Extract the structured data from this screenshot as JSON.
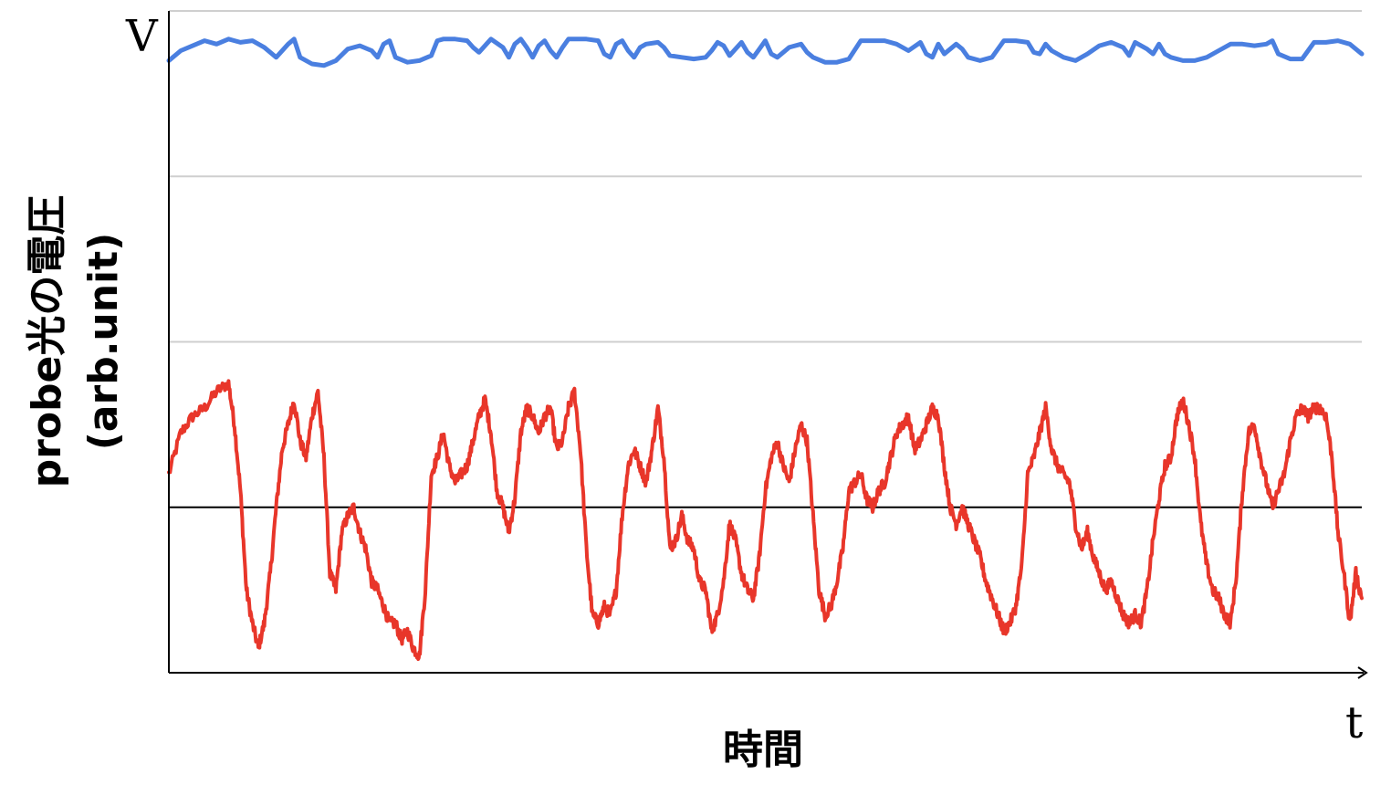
{
  "chart_data": {
    "type": "line",
    "ylabel": "probe光の電圧",
    "ylabel_unit": "(arb.unit)",
    "xlabel": "時間",
    "y_axis_symbol": "V",
    "x_axis_symbol": "t",
    "ylim": [
      0,
      4
    ],
    "xlim": [
      0,
      100
    ],
    "grid": true,
    "gridlines_y": [
      2,
      3,
      4
    ],
    "reference_line_y": 1,
    "series": [
      {
        "color": "#4a7fe0",
        "points": [
          [
            0,
            3.7
          ],
          [
            1,
            3.76
          ],
          [
            2,
            3.79
          ],
          [
            3,
            3.82
          ],
          [
            4,
            3.8
          ],
          [
            5,
            3.83
          ],
          [
            6,
            3.81
          ],
          [
            7,
            3.82
          ],
          [
            8,
            3.78
          ],
          [
            9,
            3.72
          ],
          [
            10,
            3.8
          ],
          [
            10.5,
            3.83
          ],
          [
            11,
            3.72
          ],
          [
            12,
            3.68
          ],
          [
            13,
            3.67
          ],
          [
            14,
            3.7
          ],
          [
            15,
            3.77
          ],
          [
            16,
            3.79
          ],
          [
            17,
            3.76
          ],
          [
            17.5,
            3.72
          ],
          [
            18,
            3.8
          ],
          [
            18.5,
            3.82
          ],
          [
            19,
            3.72
          ],
          [
            20,
            3.69
          ],
          [
            21,
            3.7
          ],
          [
            22,
            3.73
          ],
          [
            22.5,
            3.82
          ],
          [
            23,
            3.83
          ],
          [
            24,
            3.83
          ],
          [
            25,
            3.82
          ],
          [
            25.5,
            3.78
          ],
          [
            26,
            3.75
          ],
          [
            27,
            3.83
          ],
          [
            28,
            3.78
          ],
          [
            28.5,
            3.72
          ],
          [
            29,
            3.8
          ],
          [
            29.5,
            3.83
          ],
          [
            30,
            3.78
          ],
          [
            30.5,
            3.72
          ],
          [
            31,
            3.79
          ],
          [
            31.5,
            3.82
          ],
          [
            32,
            3.76
          ],
          [
            32.5,
            3.72
          ],
          [
            33,
            3.78
          ],
          [
            33.5,
            3.83
          ],
          [
            34,
            3.83
          ],
          [
            35,
            3.83
          ],
          [
            36,
            3.82
          ],
          [
            36.5,
            3.74
          ],
          [
            37,
            3.72
          ],
          [
            37.5,
            3.8
          ],
          [
            38,
            3.82
          ],
          [
            38.5,
            3.76
          ],
          [
            39,
            3.72
          ],
          [
            39.5,
            3.78
          ],
          [
            40,
            3.8
          ],
          [
            41,
            3.81
          ],
          [
            41.5,
            3.78
          ],
          [
            42,
            3.73
          ],
          [
            43,
            3.72
          ],
          [
            44,
            3.71
          ],
          [
            45,
            3.72
          ],
          [
            45.5,
            3.76
          ],
          [
            46,
            3.81
          ],
          [
            46.5,
            3.79
          ],
          [
            47,
            3.73
          ],
          [
            47.5,
            3.77
          ],
          [
            48,
            3.81
          ],
          [
            48.5,
            3.75
          ],
          [
            49,
            3.72
          ],
          [
            49.5,
            3.77
          ],
          [
            50,
            3.82
          ],
          [
            50.5,
            3.74
          ],
          [
            51,
            3.72
          ],
          [
            52,
            3.78
          ],
          [
            53,
            3.8
          ],
          [
            53.5,
            3.75
          ],
          [
            54,
            3.72
          ],
          [
            55,
            3.69
          ],
          [
            56,
            3.69
          ],
          [
            57,
            3.71
          ],
          [
            58,
            3.82
          ],
          [
            59,
            3.82
          ],
          [
            60,
            3.82
          ],
          [
            61,
            3.8
          ],
          [
            62,
            3.76
          ],
          [
            63,
            3.81
          ],
          [
            63.5,
            3.74
          ],
          [
            64,
            3.72
          ],
          [
            64.5,
            3.8
          ],
          [
            65,
            3.74
          ],
          [
            66,
            3.8
          ],
          [
            66.5,
            3.77
          ],
          [
            67,
            3.72
          ],
          [
            68,
            3.7
          ],
          [
            69,
            3.72
          ],
          [
            70,
            3.82
          ],
          [
            71,
            3.82
          ],
          [
            72,
            3.81
          ],
          [
            72.5,
            3.75
          ],
          [
            73,
            3.74
          ],
          [
            73.5,
            3.8
          ],
          [
            74,
            3.76
          ],
          [
            75,
            3.72
          ],
          [
            76,
            3.7
          ],
          [
            77,
            3.74
          ],
          [
            78,
            3.79
          ],
          [
            79,
            3.81
          ],
          [
            80,
            3.78
          ],
          [
            80.5,
            3.73
          ],
          [
            81,
            3.81
          ],
          [
            82,
            3.77
          ],
          [
            82.5,
            3.74
          ],
          [
            83,
            3.8
          ],
          [
            83.5,
            3.74
          ],
          [
            84,
            3.72
          ],
          [
            85,
            3.7
          ],
          [
            86,
            3.7
          ],
          [
            87,
            3.72
          ],
          [
            88,
            3.76
          ],
          [
            89,
            3.8
          ],
          [
            90,
            3.8
          ],
          [
            91,
            3.79
          ],
          [
            92,
            3.8
          ],
          [
            92.5,
            3.82
          ],
          [
            93,
            3.74
          ],
          [
            94,
            3.71
          ],
          [
            95,
            3.71
          ],
          [
            95.5,
            3.76
          ],
          [
            96,
            3.81
          ],
          [
            97,
            3.81
          ],
          [
            98,
            3.82
          ],
          [
            99,
            3.8
          ],
          [
            100,
            3.74
          ]
        ]
      },
      {
        "color": "#e8362a",
        "noise_amplitude": 0.035,
        "points": [
          [
            0,
            1.2
          ],
          [
            1,
            1.45
          ],
          [
            2,
            1.55
          ],
          [
            3,
            1.6
          ],
          [
            4,
            1.7
          ],
          [
            5,
            1.75
          ],
          [
            5.5,
            1.5
          ],
          [
            6,
            1.1
          ],
          [
            6.5,
            0.5
          ],
          [
            7,
            0.3
          ],
          [
            7.5,
            0.15
          ],
          [
            8,
            0.3
          ],
          [
            8.5,
            0.6
          ],
          [
            9,
            1.0
          ],
          [
            9.5,
            1.35
          ],
          [
            10,
            1.5
          ],
          [
            10.5,
            1.65
          ],
          [
            11,
            1.4
          ],
          [
            11.5,
            1.3
          ],
          [
            12,
            1.55
          ],
          [
            12.5,
            1.7
          ],
          [
            13,
            1.3
          ],
          [
            13.5,
            0.6
          ],
          [
            14,
            0.5
          ],
          [
            14.5,
            0.85
          ],
          [
            15,
            0.95
          ],
          [
            15.5,
            1.0
          ],
          [
            16,
            0.85
          ],
          [
            16.5,
            0.75
          ],
          [
            17,
            0.55
          ],
          [
            17.5,
            0.5
          ],
          [
            18,
            0.4
          ],
          [
            18.5,
            0.3
          ],
          [
            19,
            0.3
          ],
          [
            19.5,
            0.2
          ],
          [
            20,
            0.25
          ],
          [
            20.5,
            0.15
          ],
          [
            21,
            0.1
          ],
          [
            21.5,
            0.5
          ],
          [
            22,
            1.2
          ],
          [
            22.5,
            1.3
          ],
          [
            23,
            1.45
          ],
          [
            23.5,
            1.25
          ],
          [
            24,
            1.15
          ],
          [
            24.5,
            1.2
          ],
          [
            25,
            1.25
          ],
          [
            25.5,
            1.4
          ],
          [
            26,
            1.55
          ],
          [
            26.5,
            1.65
          ],
          [
            27,
            1.45
          ],
          [
            27.5,
            1.1
          ],
          [
            28,
            1.0
          ],
          [
            28.5,
            0.85
          ],
          [
            29,
            1.05
          ],
          [
            29.5,
            1.45
          ],
          [
            30,
            1.6
          ],
          [
            30.5,
            1.55
          ],
          [
            31,
            1.45
          ],
          [
            31.5,
            1.55
          ],
          [
            32,
            1.6
          ],
          [
            32.5,
            1.35
          ],
          [
            33,
            1.4
          ],
          [
            33.5,
            1.6
          ],
          [
            34,
            1.7
          ],
          [
            34.5,
            1.35
          ],
          [
            35,
            0.75
          ],
          [
            35.5,
            0.35
          ],
          [
            36,
            0.3
          ],
          [
            36.5,
            0.4
          ],
          [
            37,
            0.35
          ],
          [
            37.5,
            0.5
          ],
          [
            38,
            0.95
          ],
          [
            38.5,
            1.25
          ],
          [
            39,
            1.35
          ],
          [
            39.5,
            1.25
          ],
          [
            40,
            1.15
          ],
          [
            40.5,
            1.35
          ],
          [
            41,
            1.6
          ],
          [
            41.5,
            1.3
          ],
          [
            42,
            0.75
          ],
          [
            42.5,
            0.8
          ],
          [
            43,
            0.95
          ],
          [
            43.5,
            0.8
          ],
          [
            44,
            0.75
          ],
          [
            44.5,
            0.55
          ],
          [
            45,
            0.5
          ],
          [
            45.5,
            0.25
          ],
          [
            46,
            0.35
          ],
          [
            46.5,
            0.55
          ],
          [
            47,
            0.9
          ],
          [
            47.5,
            0.8
          ],
          [
            48,
            0.6
          ],
          [
            48.5,
            0.5
          ],
          [
            49,
            0.45
          ],
          [
            49.5,
            0.7
          ],
          [
            50,
            1.1
          ],
          [
            50.5,
            1.3
          ],
          [
            51,
            1.4
          ],
          [
            51.5,
            1.25
          ],
          [
            52,
            1.15
          ],
          [
            52.5,
            1.35
          ],
          [
            53,
            1.5
          ],
          [
            53.5,
            1.4
          ],
          [
            54,
            0.95
          ],
          [
            54.5,
            0.5
          ],
          [
            55,
            0.35
          ],
          [
            55.5,
            0.4
          ],
          [
            56,
            0.55
          ],
          [
            56.5,
            0.75
          ],
          [
            57,
            1.1
          ],
          [
            57.5,
            1.15
          ],
          [
            58,
            1.2
          ],
          [
            58.5,
            1.05
          ],
          [
            59,
            1.0
          ],
          [
            59.5,
            1.1
          ],
          [
            60,
            1.15
          ],
          [
            60.5,
            1.3
          ],
          [
            61,
            1.45
          ],
          [
            61.5,
            1.5
          ],
          [
            62,
            1.55
          ],
          [
            62.5,
            1.35
          ],
          [
            63,
            1.4
          ],
          [
            63.5,
            1.5
          ],
          [
            64,
            1.6
          ],
          [
            64.5,
            1.55
          ],
          [
            65,
            1.25
          ],
          [
            65.5,
            1.0
          ],
          [
            66,
            0.9
          ],
          [
            66.5,
            1.0
          ],
          [
            67,
            0.9
          ],
          [
            67.5,
            0.8
          ],
          [
            68,
            0.7
          ],
          [
            68.5,
            0.55
          ],
          [
            69,
            0.45
          ],
          [
            69.5,
            0.35
          ],
          [
            70,
            0.25
          ],
          [
            70.5,
            0.3
          ],
          [
            71,
            0.4
          ],
          [
            71.5,
            0.65
          ],
          [
            72,
            1.2
          ],
          [
            72.5,
            1.3
          ],
          [
            73,
            1.45
          ],
          [
            73.5,
            1.6
          ],
          [
            74,
            1.35
          ],
          [
            74.5,
            1.25
          ],
          [
            75,
            1.2
          ],
          [
            75.5,
            1.15
          ],
          [
            76,
            0.9
          ],
          [
            76.5,
            0.75
          ],
          [
            77,
            0.85
          ],
          [
            77.5,
            0.7
          ],
          [
            78,
            0.6
          ],
          [
            78.5,
            0.5
          ],
          [
            79,
            0.55
          ],
          [
            79.5,
            0.45
          ],
          [
            80,
            0.35
          ],
          [
            80.5,
            0.3
          ],
          [
            81,
            0.35
          ],
          [
            81.5,
            0.3
          ],
          [
            82,
            0.5
          ],
          [
            82.5,
            0.8
          ],
          [
            83,
            1.05
          ],
          [
            83.5,
            1.25
          ],
          [
            84,
            1.3
          ],
          [
            84.5,
            1.55
          ],
          [
            85,
            1.65
          ],
          [
            85.5,
            1.5
          ],
          [
            86,
            1.3
          ],
          [
            86.5,
            0.9
          ],
          [
            87,
            0.65
          ],
          [
            87.5,
            0.5
          ],
          [
            88,
            0.45
          ],
          [
            88.5,
            0.35
          ],
          [
            89,
            0.3
          ],
          [
            89.5,
            0.6
          ],
          [
            90,
            1.1
          ],
          [
            90.5,
            1.45
          ],
          [
            91,
            1.5
          ],
          [
            91.5,
            1.3
          ],
          [
            92,
            1.15
          ],
          [
            92.5,
            1.0
          ],
          [
            93,
            1.1
          ],
          [
            93.5,
            1.2
          ],
          [
            94,
            1.4
          ],
          [
            94.5,
            1.55
          ],
          [
            95,
            1.6
          ],
          [
            95.5,
            1.55
          ],
          [
            96,
            1.6
          ],
          [
            96.5,
            1.6
          ],
          [
            97,
            1.55
          ],
          [
            97.5,
            1.3
          ],
          [
            98,
            0.85
          ],
          [
            98.5,
            0.6
          ],
          [
            99,
            0.3
          ],
          [
            99.5,
            0.6
          ],
          [
            100,
            0.45
          ]
        ]
      }
    ]
  }
}
